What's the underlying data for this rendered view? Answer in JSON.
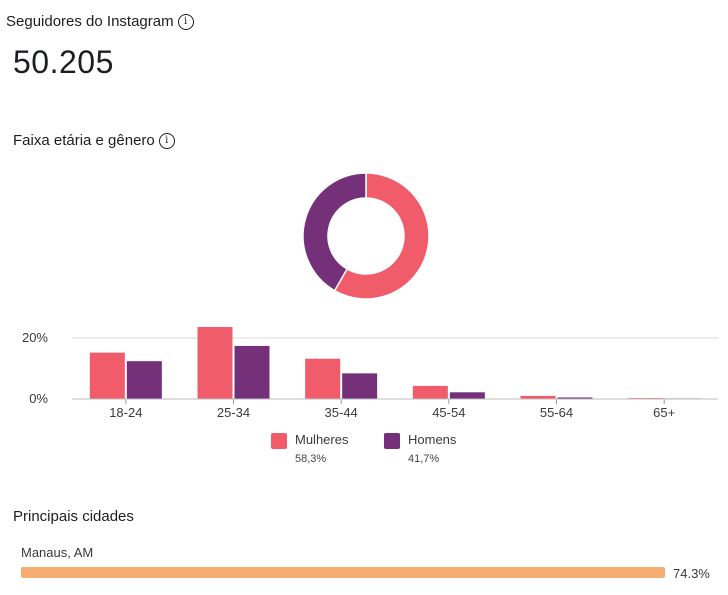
{
  "followers": {
    "title": "Seguidores do Instagram",
    "count": "50.205"
  },
  "age_gender": {
    "title": "Faixa etária e gênero"
  },
  "legend": [
    {
      "label": "Mulheres",
      "pct": "58,3%"
    },
    {
      "label": "Homens",
      "pct": "41,7%"
    }
  ],
  "cities": {
    "title": "Principais cidades",
    "items": [
      {
        "name": "Manaus, AM",
        "pct_label": "74.3%",
        "fill_fraction": 1.0
      }
    ]
  },
  "colors": {
    "women": "#f05c6a",
    "men": "#743079",
    "city_bar": "#f5ad72",
    "grid": "#d9d9d9"
  },
  "icons": {
    "info": "info-circle-icon"
  },
  "chart_data": [
    {
      "type": "pie",
      "subtype": "donut",
      "series": [
        {
          "name": "Mulheres",
          "value": 58.3
        },
        {
          "name": "Homens",
          "value": 41.7
        }
      ]
    },
    {
      "type": "bar",
      "categories": [
        "18-24",
        "25-34",
        "35-44",
        "45-54",
        "55-64",
        "65+"
      ],
      "series": [
        {
          "name": "Mulheres",
          "values": [
            15.2,
            23.6,
            13.2,
            4.3,
            1.0,
            0.3
          ]
        },
        {
          "name": "Homens",
          "values": [
            12.4,
            17.4,
            8.4,
            2.2,
            0.5,
            0.2
          ]
        }
      ],
      "ytick_labels": [
        "0%",
        "20%"
      ],
      "yticks": [
        0,
        20
      ],
      "ylim": [
        0,
        25
      ],
      "grid": true
    }
  ]
}
